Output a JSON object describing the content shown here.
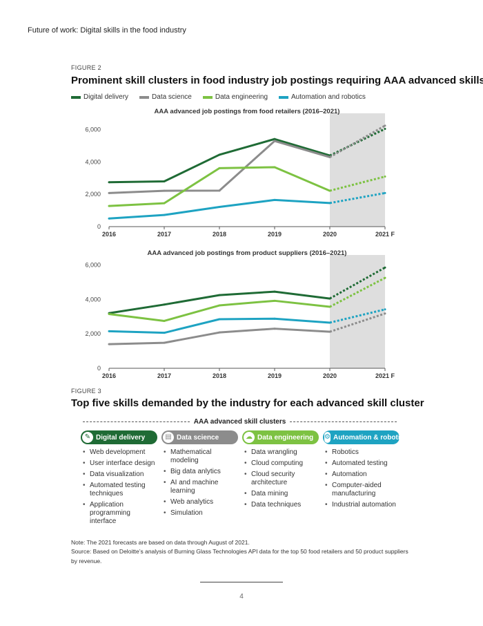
{
  "running_header": "Future of work: Digital skills in the food industry",
  "figure2": {
    "label": "FIGURE 2",
    "title": "Prominent skill clusters in food industry job postings requiring AAA advanced skills",
    "legend": [
      {
        "name": "Digital delivery",
        "color": "#1f6b35"
      },
      {
        "name": "Data science",
        "color": "#8c8c8c"
      },
      {
        "name": "Data engineering",
        "color": "#7dc242"
      },
      {
        "name": "Automation and robotics",
        "color": "#1ea3c2"
      }
    ]
  },
  "chart_data": [
    {
      "type": "line",
      "title": "AAA advanced job postings from food retailers (2016–2021)",
      "categories": [
        "2016",
        "2017",
        "2018",
        "2019",
        "2020",
        "2021 F"
      ],
      "ylim": [
        0,
        6500
      ],
      "yticks": [
        "0",
        "2,000",
        "4,000",
        "6,000"
      ],
      "ytick_values": [
        0,
        2000,
        4000,
        6000
      ],
      "forecast_from_index": 4,
      "series": [
        {
          "name": "Digital delivery",
          "color": "#1f6b35",
          "values": [
            2750,
            2800,
            4450,
            5420,
            4400,
            6050
          ]
        },
        {
          "name": "Data science",
          "color": "#8c8c8c",
          "values": [
            2080,
            2220,
            2230,
            5300,
            4300,
            6250
          ]
        },
        {
          "name": "Data engineering",
          "color": "#7dc242",
          "values": [
            1280,
            1450,
            3620,
            3680,
            2220,
            3100
          ]
        },
        {
          "name": "Automation and robotics",
          "color": "#1ea3c2",
          "values": [
            500,
            720,
            1220,
            1650,
            1460,
            2080
          ]
        }
      ]
    },
    {
      "type": "line",
      "title": "AAA advanced job postings from product suppliers (2016–2021)",
      "categories": [
        "2016",
        "2017",
        "2018",
        "2019",
        "2020",
        "2021 F"
      ],
      "ylim": [
        0,
        6100
      ],
      "yticks": [
        "0",
        "2,000",
        "4,000",
        "6,000"
      ],
      "ytick_values": [
        0,
        2000,
        4000,
        6000
      ],
      "forecast_from_index": 4,
      "series": [
        {
          "name": "Digital delivery",
          "color": "#1f6b35",
          "values": [
            3200,
            3700,
            4250,
            4450,
            4050,
            5850
          ]
        },
        {
          "name": "Data science",
          "color": "#8c8c8c",
          "values": [
            1400,
            1480,
            2080,
            2300,
            2120,
            3180
          ]
        },
        {
          "name": "Data engineering",
          "color": "#7dc242",
          "values": [
            3150,
            2750,
            3650,
            3920,
            3570,
            5250
          ]
        },
        {
          "name": "Automation and robotics",
          "color": "#1ea3c2",
          "values": [
            2150,
            2060,
            2850,
            2880,
            2650,
            3420
          ]
        }
      ]
    }
  ],
  "figure3": {
    "label": "FIGURE 3",
    "title": "Top five skills demanded by the industry for each advanced skill cluster",
    "clusters_header": "AAA advanced skill clusters",
    "clusters": [
      {
        "name": "Digital delivery",
        "color": "#1f6b35",
        "icon": "digital-delivery-icon",
        "glyph": "✎",
        "skills": [
          "Web development",
          "User interface design",
          "Data visualization",
          "Automated testing techniques",
          "Application programming interface"
        ]
      },
      {
        "name": "Data science",
        "color": "#8c8c8c",
        "icon": "data-science-icon",
        "glyph": "▤",
        "skills": [
          "Mathematical modeling",
          "Big data anlytics",
          "AI and machine learning",
          "Web analytics",
          "Simulation"
        ]
      },
      {
        "name": "Data engineering",
        "color": "#7dc242",
        "icon": "cloud-icon",
        "glyph": "☁",
        "skills": [
          "Data wrangling",
          "Cloud computing",
          "Cloud security architecture",
          "Data mining",
          "Data techniques"
        ]
      },
      {
        "name": "Automation & robotics",
        "color": "#1ea3c2",
        "icon": "robot-gear-icon",
        "glyph": "⚙",
        "skills": [
          "Robotics",
          "Automated testing",
          "Automation",
          "Computer-aided manufacturing",
          "Industrial automation"
        ]
      }
    ]
  },
  "notes": {
    "note": "Note: The 2021 forecasts are based on data through August of 2021.",
    "source": "Source: Based on Deloitte’s analysis of Burning Glass Technologies API data for the top 50 food retailers and 50 product suppliers by revenue."
  },
  "page_number": "4"
}
